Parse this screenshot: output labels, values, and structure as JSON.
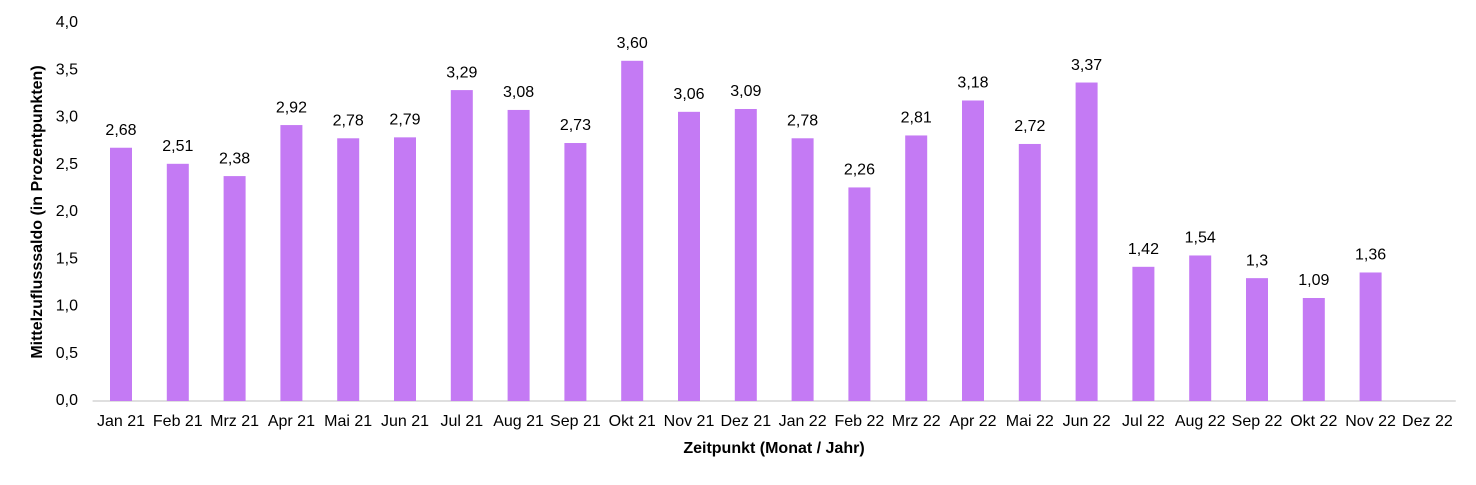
{
  "chart_data": {
    "type": "bar",
    "y_label": "Mittelzuflusssaldo (in Prozentpunkten)",
    "x_label": "Zeitpunkt (Monat / Jahr)",
    "categories": [
      "Jan 21",
      "Feb 21",
      "Mrz 21",
      "Apr 21",
      "Mai 21",
      "Jun 21",
      "Jul 21",
      "Aug 21",
      "Sep 21",
      "Okt 21",
      "Nov 21",
      "Dez 21",
      "Jan 22",
      "Feb 22",
      "Mrz 22",
      "Apr 22",
      "Mai 22",
      "Jun 22",
      "Jul 22",
      "Aug 22",
      "Sep 22",
      "Okt 22",
      "Nov 22",
      "Dez 22"
    ],
    "values": [
      2.68,
      2.51,
      2.38,
      2.92,
      2.78,
      2.79,
      3.29,
      3.08,
      2.73,
      3.6,
      3.06,
      3.09,
      2.78,
      2.26,
      2.81,
      3.18,
      2.72,
      3.37,
      1.42,
      1.54,
      1.3,
      1.09,
      1.36,
      null
    ],
    "value_labels": [
      "2,68",
      "2,51",
      "2,38",
      "2,92",
      "2,78",
      "2,79",
      "3,29",
      "3,08",
      "2,73",
      "3,60",
      "3,06",
      "3,09",
      "2,78",
      "2,26",
      "2,81",
      "3,18",
      "2,72",
      "3,37",
      "1,42",
      "1,54",
      "1,3",
      "1,09",
      "1,36",
      null
    ],
    "color": "#c47af4",
    "ylim": [
      0,
      4
    ],
    "yticks": [
      {
        "value": 0,
        "label": "0,0"
      },
      {
        "value": 0.5,
        "label": "0,5"
      },
      {
        "value": 1,
        "label": "1,0"
      },
      {
        "value": 1.5,
        "label": "1,5"
      },
      {
        "value": 2,
        "label": "2,0"
      },
      {
        "value": 2.5,
        "label": "2,5"
      },
      {
        "value": 3,
        "label": "3,0"
      },
      {
        "value": 3.5,
        "label": "3,5"
      },
      {
        "value": 4,
        "label": "4,0"
      }
    ],
    "grid": false
  }
}
